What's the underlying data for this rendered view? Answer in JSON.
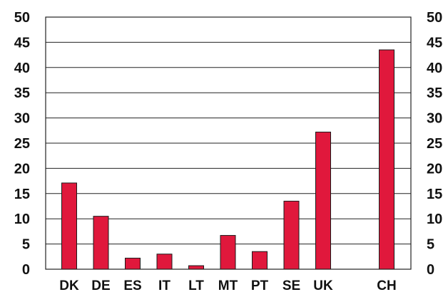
{
  "chart_data": {
    "type": "bar",
    "title": "",
    "xlabel": "",
    "ylabel": "",
    "categories": [
      "DK",
      "DE",
      "ES",
      "IT",
      "LT",
      "MT",
      "PT",
      "SE",
      "UK",
      "CH"
    ],
    "values": [
      17.1,
      10.5,
      2.2,
      3.0,
      0.7,
      6.7,
      3.5,
      13.5,
      27.2,
      43.5
    ],
    "ylim": [
      0,
      50
    ],
    "yticks": [
      0,
      5,
      10,
      15,
      20,
      25,
      30,
      35,
      40,
      45,
      50
    ],
    "ytick_labels": [
      "0",
      "5",
      "10",
      "15",
      "20",
      "25",
      "30",
      "35",
      "40",
      "45",
      "50"
    ],
    "grid": true,
    "legend": "none",
    "secondary_y_axis": true,
    "colors": {
      "bar": "#e0183c",
      "bar_edge": "#1a1a1a",
      "grid": "#222222"
    }
  }
}
